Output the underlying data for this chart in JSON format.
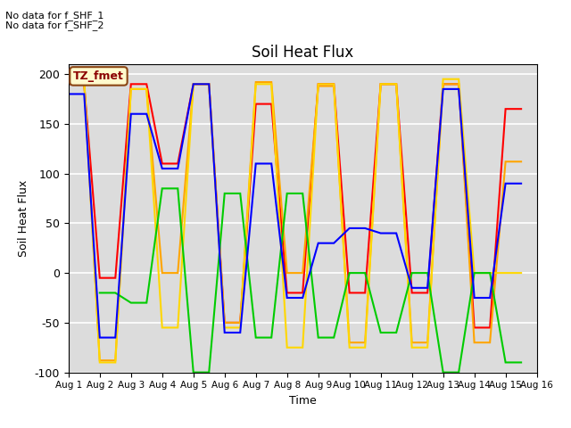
{
  "title": "Soil Heat Flux",
  "xlabel": "Time",
  "ylabel": "Soil Heat Flux",
  "annotation_lines": [
    "No data for f_SHF_1",
    "No data for f_SHF_2"
  ],
  "legend_label": "TZ_fmet",
  "ylim": [
    -100,
    210
  ],
  "xlim": [
    0,
    15
  ],
  "xtick_labels": [
    "Aug 1",
    "Aug 2",
    "Aug 3",
    "Aug 4",
    "Aug 5",
    "Aug 6",
    "Aug 7",
    "Aug 8",
    "Aug 9",
    "Aug 10",
    "Aug 11",
    "Aug 12",
    "Aug 13",
    "Aug 14",
    "Aug 15",
    "Aug 16"
  ],
  "ytick_values": [
    -100,
    -50,
    0,
    50,
    100,
    150,
    200
  ],
  "series": {
    "SHF1": {
      "color": "#FF0000",
      "x": [
        0,
        0.5,
        1,
        1.5,
        2,
        2.5,
        3,
        3.5,
        4,
        4.5,
        5,
        5.5,
        6,
        6.5,
        7,
        7.5,
        8,
        8.5,
        9,
        9.5,
        10,
        10.5,
        11,
        11.5,
        12,
        12.5,
        13,
        13.5,
        14,
        14.5
      ],
      "y": [
        190,
        190,
        -5,
        -5,
        190,
        190,
        110,
        110,
        190,
        190,
        -50,
        -50,
        170,
        170,
        -20,
        -20,
        190,
        190,
        -20,
        -20,
        190,
        190,
        -20,
        -20,
        190,
        190,
        -55,
        -55,
        165,
        165
      ]
    },
    "SHF2": {
      "color": "#FFA500",
      "x": [
        0,
        0.5,
        1,
        1.5,
        2,
        2.5,
        3,
        3.5,
        4,
        4.5,
        5,
        5.5,
        6,
        6.5,
        7,
        7.5,
        8,
        8.5,
        9,
        9.5,
        10,
        10.5,
        11,
        11.5,
        12,
        12.5,
        13,
        13.5,
        14,
        14.5
      ],
      "y": [
        192,
        192,
        -88,
        -88,
        185,
        185,
        0,
        0,
        190,
        190,
        -50,
        -50,
        192,
        192,
        0,
        0,
        188,
        188,
        -70,
        -70,
        190,
        190,
        -70,
        -70,
        190,
        190,
        -70,
        -70,
        112,
        112
      ]
    },
    "SHF3": {
      "color": "#FFD700",
      "x": [
        0,
        0.5,
        1,
        1.5,
        2,
        2.5,
        3,
        3.5,
        4,
        4.5,
        5,
        5.5,
        6,
        6.5,
        7,
        7.5,
        8,
        8.5,
        9,
        9.5,
        10,
        10.5,
        11,
        11.5,
        12,
        12.5,
        13,
        13.5,
        14,
        14.5
      ],
      "y": [
        195,
        195,
        -90,
        -90,
        185,
        185,
        -55,
        -55,
        190,
        190,
        -55,
        -55,
        190,
        190,
        -75,
        -75,
        190,
        190,
        -75,
        -75,
        190,
        190,
        -75,
        -75,
        195,
        195,
        0,
        0,
        0,
        0
      ]
    },
    "SHF4": {
      "color": "#00CC00",
      "x": [
        1,
        1.5,
        2,
        2.5,
        3,
        3.5,
        4,
        4.5,
        5,
        5.5,
        6,
        6.5,
        7,
        7.5,
        8,
        8.5,
        9,
        9.5,
        10,
        10.5,
        11,
        11.5,
        12,
        12.5,
        13,
        13.5,
        14,
        14.5
      ],
      "y": [
        -20,
        -20,
        -30,
        -30,
        85,
        85,
        -100,
        -100,
        80,
        80,
        -65,
        -65,
        80,
        80,
        -65,
        -65,
        0,
        0,
        -60,
        -60,
        0,
        0,
        -100,
        -100,
        0,
        0,
        -90,
        -90
      ]
    },
    "SHF5": {
      "color": "#0000FF",
      "x": [
        0,
        0.5,
        1,
        1.5,
        2,
        2.5,
        3,
        3.5,
        4,
        4.5,
        5,
        5.5,
        6,
        6.5,
        7,
        7.5,
        8,
        8.5,
        9,
        9.5,
        10,
        10.5,
        11,
        11.5,
        12,
        12.5,
        13,
        13.5,
        14,
        14.5
      ],
      "y": [
        180,
        180,
        -65,
        -65,
        160,
        160,
        105,
        105,
        190,
        190,
        -60,
        -60,
        110,
        110,
        -25,
        -25,
        30,
        30,
        45,
        45,
        40,
        40,
        -15,
        -15,
        185,
        185,
        -25,
        -25,
        90,
        90
      ]
    }
  },
  "bg_color": "#DCDCDC",
  "grid_color": "#FFFFFF",
  "fig_bg_color": "#FFFFFF",
  "linewidth": 1.5
}
